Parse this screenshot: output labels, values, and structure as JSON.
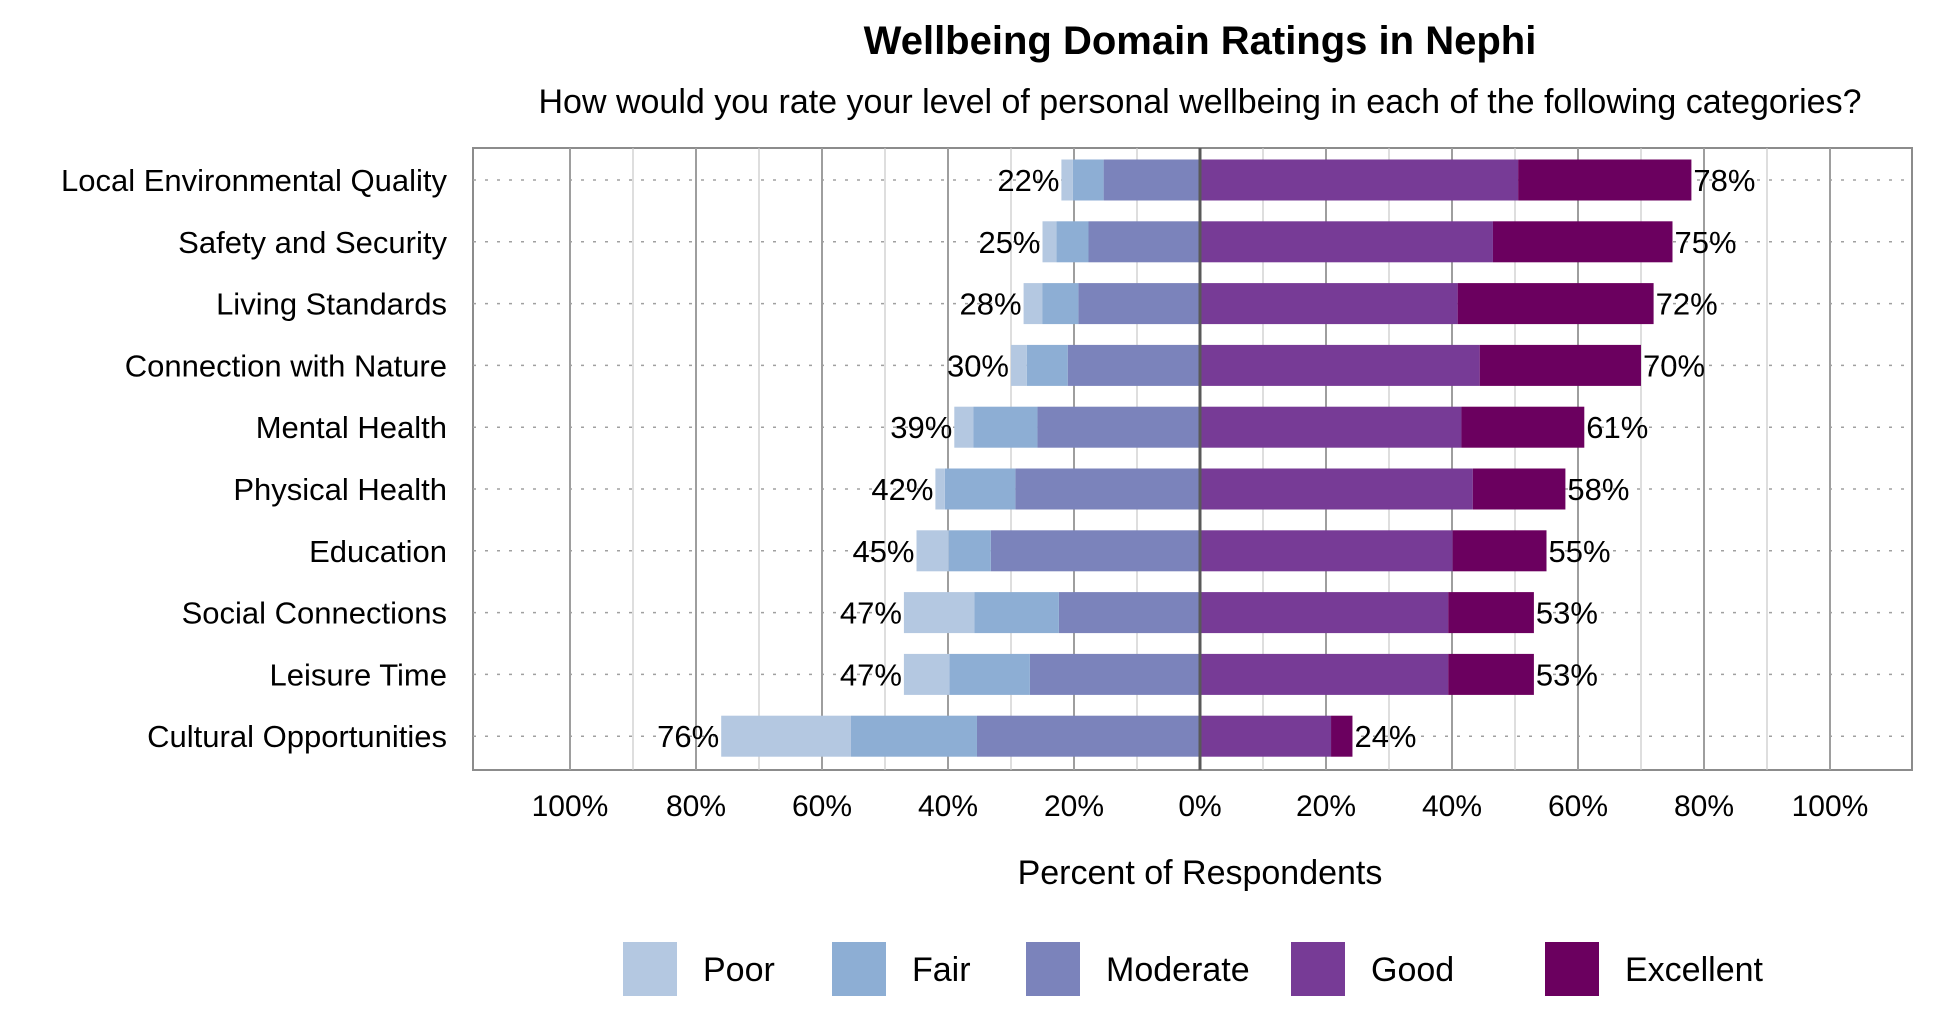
{
  "chart_data": {
    "type": "bar",
    "orientation": "horizontal",
    "stacking": "diverging",
    "title": "Wellbeing Domain Ratings in Nephi",
    "subtitle": "How would you rate your level of personal wellbeing in each of the following categories?",
    "xlabel": "Percent of Respondents",
    "xlim": [
      -100,
      100
    ],
    "x_ticks": [
      "100%",
      "80%",
      "60%",
      "40%",
      "20%",
      "0%",
      "20%",
      "40%",
      "60%",
      "80%",
      "100%"
    ],
    "grid": true,
    "legend_position": "bottom",
    "categories": [
      "Local Environmental Quality",
      "Safety and Security",
      "Living Standards",
      "Connection with Nature",
      "Mental Health",
      "Physical Health",
      "Education",
      "Social Connections",
      "Leisure Time",
      "Cultural Opportunities"
    ],
    "series": [
      {
        "name": "Poor",
        "side": "negative",
        "color": "#b4c8e1",
        "values": [
          1.8,
          2.2,
          3.0,
          2.5,
          3.0,
          1.5,
          5.1,
          11.2,
          7.2,
          20.6
        ]
      },
      {
        "name": "Fair",
        "side": "negative",
        "color": "#8daed4",
        "values": [
          4.9,
          5.1,
          5.7,
          6.5,
          10.2,
          11.2,
          6.7,
          13.4,
          12.8,
          20.0
        ]
      },
      {
        "name": "Moderate",
        "side": "negative",
        "color": "#7b83bb",
        "values": [
          15.3,
          17.7,
          19.3,
          21.0,
          25.8,
          29.3,
          33.2,
          22.4,
          27.0,
          35.4
        ]
      },
      {
        "name": "Good",
        "side": "positive",
        "color": "#773b96",
        "values": [
          50.5,
          46.5,
          40.9,
          44.4,
          41.5,
          43.3,
          40.1,
          39.4,
          39.4,
          20.8
        ]
      },
      {
        "name": "Excellent",
        "side": "positive",
        "color": "#6b005f",
        "values": [
          27.5,
          28.5,
          31.1,
          25.6,
          19.5,
          14.7,
          14.9,
          13.6,
          13.6,
          3.4
        ]
      }
    ],
    "negative_totals": [
      "22%",
      "25%",
      "28%",
      "30%",
      "39%",
      "42%",
      "45%",
      "47%",
      "47%",
      "76%"
    ],
    "positive_totals": [
      "78%",
      "75%",
      "72%",
      "70%",
      "61%",
      "58%",
      "55%",
      "53%",
      "53%",
      "24%"
    ]
  },
  "colors": {
    "grid_major": "#9e9e9e",
    "grid_minor": "#c8c8c8",
    "zero_line": "#595959",
    "frame": "#8c8c8c"
  }
}
